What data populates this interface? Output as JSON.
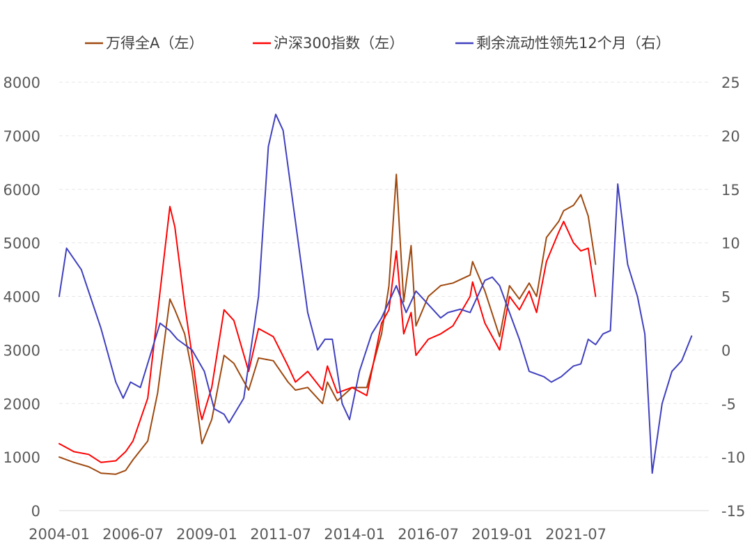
{
  "chart_data": {
    "type": "line",
    "title": "",
    "legend_position": "top",
    "grid": true,
    "y_left": {
      "ylim": [
        0,
        8000
      ],
      "ticks": [
        0,
        1000,
        2000,
        3000,
        4000,
        5000,
        6000,
        7000,
        8000
      ]
    },
    "y_right": {
      "ylim": [
        -15,
        25
      ],
      "ticks": [
        -15,
        -10,
        -5,
        0,
        5,
        10,
        15,
        20,
        25
      ]
    },
    "x_ticks": [
      "2004-01",
      "2006-07",
      "2009-01",
      "2011-07",
      "2014-01",
      "2016-07",
      "2019-01",
      "2021-07"
    ],
    "series": [
      {
        "name": "万得全A（左）",
        "axis": "left",
        "color": "#9E480E",
        "points": [
          [
            "2004-01",
            1000
          ],
          [
            "2004-07",
            900
          ],
          [
            "2005-01",
            820
          ],
          [
            "2005-06",
            700
          ],
          [
            "2005-12",
            680
          ],
          [
            "2006-04",
            750
          ],
          [
            "2006-07",
            950
          ],
          [
            "2007-01",
            1300
          ],
          [
            "2007-05",
            2200
          ],
          [
            "2007-10",
            3950
          ],
          [
            "2007-12",
            3750
          ],
          [
            "2008-04",
            3300
          ],
          [
            "2008-07",
            2600
          ],
          [
            "2008-10",
            1600
          ],
          [
            "2008-11",
            1250
          ],
          [
            "2009-03",
            1700
          ],
          [
            "2009-08",
            2900
          ],
          [
            "2009-12",
            2750
          ],
          [
            "2010-06",
            2250
          ],
          [
            "2010-10",
            2850
          ],
          [
            "2011-04",
            2800
          ],
          [
            "2011-10",
            2400
          ],
          [
            "2012-01",
            2250
          ],
          [
            "2012-06",
            2300
          ],
          [
            "2012-12",
            2000
          ],
          [
            "2013-02",
            2400
          ],
          [
            "2013-06",
            2050
          ],
          [
            "2013-12",
            2300
          ],
          [
            "2014-06",
            2300
          ],
          [
            "2014-12",
            3300
          ],
          [
            "2015-03",
            4200
          ],
          [
            "2015-06",
            6280
          ],
          [
            "2015-09",
            3900
          ],
          [
            "2015-12",
            4950
          ],
          [
            "2016-02",
            3450
          ],
          [
            "2016-07",
            4000
          ],
          [
            "2016-12",
            4200
          ],
          [
            "2017-05",
            4250
          ],
          [
            "2017-12",
            4400
          ],
          [
            "2018-01",
            4650
          ],
          [
            "2018-06",
            4100
          ],
          [
            "2018-12",
            3250
          ],
          [
            "2019-04",
            4200
          ],
          [
            "2019-08",
            3950
          ],
          [
            "2019-12",
            4250
          ],
          [
            "2020-03",
            4000
          ],
          [
            "2020-07",
            5100
          ],
          [
            "2020-12",
            5400
          ],
          [
            "2021-02",
            5600
          ],
          [
            "2021-06",
            5700
          ],
          [
            "2021-09",
            5900
          ],
          [
            "2021-12",
            5500
          ],
          [
            "2022-03",
            4600
          ]
        ]
      },
      {
        "name": "沪深300指数（左）",
        "axis": "left",
        "color": "#FF0000",
        "points": [
          [
            "2004-01",
            1250
          ],
          [
            "2004-07",
            1100
          ],
          [
            "2005-01",
            1050
          ],
          [
            "2005-06",
            900
          ],
          [
            "2005-12",
            930
          ],
          [
            "2006-04",
            1100
          ],
          [
            "2006-07",
            1300
          ],
          [
            "2007-01",
            2100
          ],
          [
            "2007-05",
            3700
          ],
          [
            "2007-10",
            5680
          ],
          [
            "2007-12",
            5300
          ],
          [
            "2008-04",
            3850
          ],
          [
            "2008-07",
            2900
          ],
          [
            "2008-10",
            1900
          ],
          [
            "2008-11",
            1700
          ],
          [
            "2009-03",
            2300
          ],
          [
            "2009-08",
            3750
          ],
          [
            "2009-12",
            3550
          ],
          [
            "2010-06",
            2600
          ],
          [
            "2010-10",
            3400
          ],
          [
            "2011-04",
            3250
          ],
          [
            "2011-10",
            2700
          ],
          [
            "2012-01",
            2400
          ],
          [
            "2012-06",
            2600
          ],
          [
            "2012-12",
            2250
          ],
          [
            "2013-02",
            2700
          ],
          [
            "2013-06",
            2200
          ],
          [
            "2013-12",
            2300
          ],
          [
            "2014-06",
            2150
          ],
          [
            "2014-12",
            3500
          ],
          [
            "2015-03",
            3750
          ],
          [
            "2015-06",
            4850
          ],
          [
            "2015-09",
            3300
          ],
          [
            "2015-12",
            3700
          ],
          [
            "2016-02",
            2900
          ],
          [
            "2016-07",
            3200
          ],
          [
            "2016-12",
            3300
          ],
          [
            "2017-05",
            3450
          ],
          [
            "2017-12",
            4000
          ],
          [
            "2018-01",
            4270
          ],
          [
            "2018-06",
            3500
          ],
          [
            "2018-12",
            3000
          ],
          [
            "2019-04",
            4000
          ],
          [
            "2019-08",
            3750
          ],
          [
            "2019-12",
            4100
          ],
          [
            "2020-03",
            3700
          ],
          [
            "2020-07",
            4650
          ],
          [
            "2020-12",
            5200
          ],
          [
            "2021-02",
            5400
          ],
          [
            "2021-06",
            5000
          ],
          [
            "2021-09",
            4850
          ],
          [
            "2021-12",
            4900
          ],
          [
            "2022-03",
            4000
          ]
        ]
      },
      {
        "name": "剩余流动性领先12个月（右）",
        "axis": "right",
        "color": "#3F3FBF",
        "points": [
          [
            "2004-01",
            5
          ],
          [
            "2004-04",
            9.5
          ],
          [
            "2004-10",
            7.5
          ],
          [
            "2005-06",
            2
          ],
          [
            "2005-12",
            -3
          ],
          [
            "2006-03",
            -4.5
          ],
          [
            "2006-06",
            -3
          ],
          [
            "2006-10",
            -3.5
          ],
          [
            "2007-06",
            2.5
          ],
          [
            "2007-10",
            1.8
          ],
          [
            "2008-01",
            1
          ],
          [
            "2008-07",
            0
          ],
          [
            "2008-12",
            -2
          ],
          [
            "2009-04",
            -5.5
          ],
          [
            "2009-08",
            -6
          ],
          [
            "2009-10",
            -6.8
          ],
          [
            "2010-04",
            -4.5
          ],
          [
            "2010-10",
            5
          ],
          [
            "2011-02",
            19
          ],
          [
            "2011-05",
            22
          ],
          [
            "2011-08",
            20.5
          ],
          [
            "2012-01",
            12
          ],
          [
            "2012-06",
            3.5
          ],
          [
            "2012-10",
            0
          ],
          [
            "2013-01",
            1
          ],
          [
            "2013-04",
            1
          ],
          [
            "2013-08",
            -5
          ],
          [
            "2013-11",
            -6.5
          ],
          [
            "2014-03",
            -2
          ],
          [
            "2014-08",
            1.5
          ],
          [
            "2014-12",
            3
          ],
          [
            "2015-06",
            6
          ],
          [
            "2015-10",
            3.5
          ],
          [
            "2016-02",
            5.5
          ],
          [
            "2016-06",
            4.5
          ],
          [
            "2016-12",
            3
          ],
          [
            "2017-03",
            3.5
          ],
          [
            "2017-08",
            3.8
          ],
          [
            "2017-12",
            3.5
          ],
          [
            "2018-06",
            6.5
          ],
          [
            "2018-09",
            6.8
          ],
          [
            "2018-12",
            6
          ],
          [
            "2019-04",
            3.5
          ],
          [
            "2019-08",
            1
          ],
          [
            "2019-12",
            -2
          ],
          [
            "2020-06",
            -2.5
          ],
          [
            "2020-09",
            -3
          ],
          [
            "2021-01",
            -2.5
          ],
          [
            "2021-06",
            -1.5
          ],
          [
            "2021-09",
            -1.3
          ],
          [
            "2021-12",
            1
          ],
          [
            "2022-03",
            0.5
          ],
          [
            "2022-06",
            1.5
          ],
          [
            "2022-09",
            1.8
          ],
          [
            "2022-12",
            15.5
          ],
          [
            "2023-04",
            8
          ],
          [
            "2023-08",
            5
          ],
          [
            "2023-11",
            1.5
          ],
          [
            "2024-02",
            -11.5
          ],
          [
            "2024-06",
            -5
          ],
          [
            "2024-10",
            -2
          ],
          [
            "2025-02",
            -1
          ],
          [
            "2025-06",
            1.3
          ]
        ]
      }
    ]
  }
}
